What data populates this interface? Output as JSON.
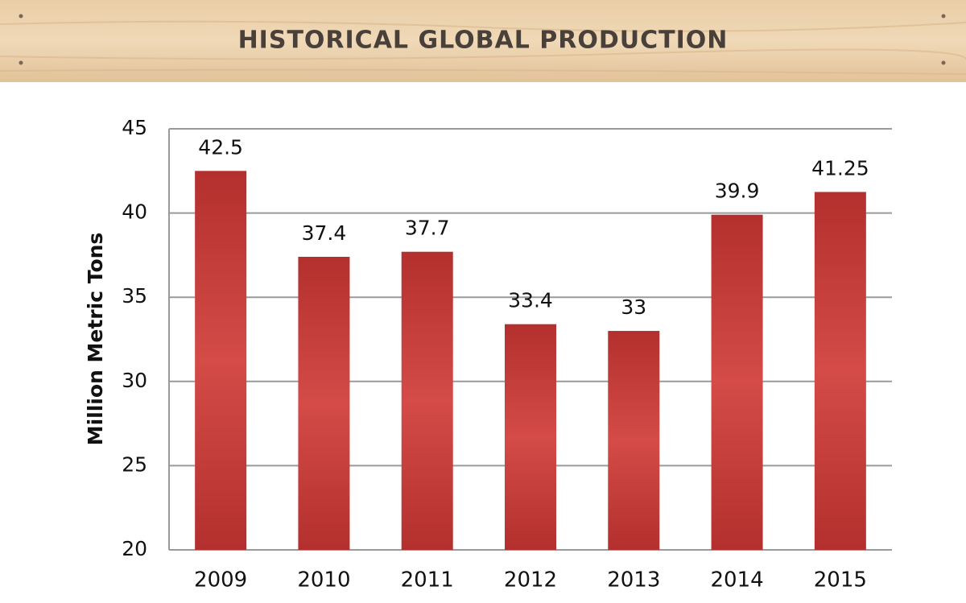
{
  "chart_data": {
    "type": "bar",
    "title": "HISTORICAL GLOBAL PRODUCTION",
    "y_label": "Million Metric Tons",
    "categories": [
      "2009",
      "2010",
      "2011",
      "2012",
      "2013",
      "2014",
      "2015"
    ],
    "values": [
      42.5,
      37.4,
      37.7,
      33.4,
      33,
      39.9,
      41.25
    ],
    "color": "#b3302e",
    "ylim": [
      20,
      45
    ],
    "yticks": [
      20,
      25,
      30,
      35,
      40,
      45
    ],
    "grid": true
  }
}
